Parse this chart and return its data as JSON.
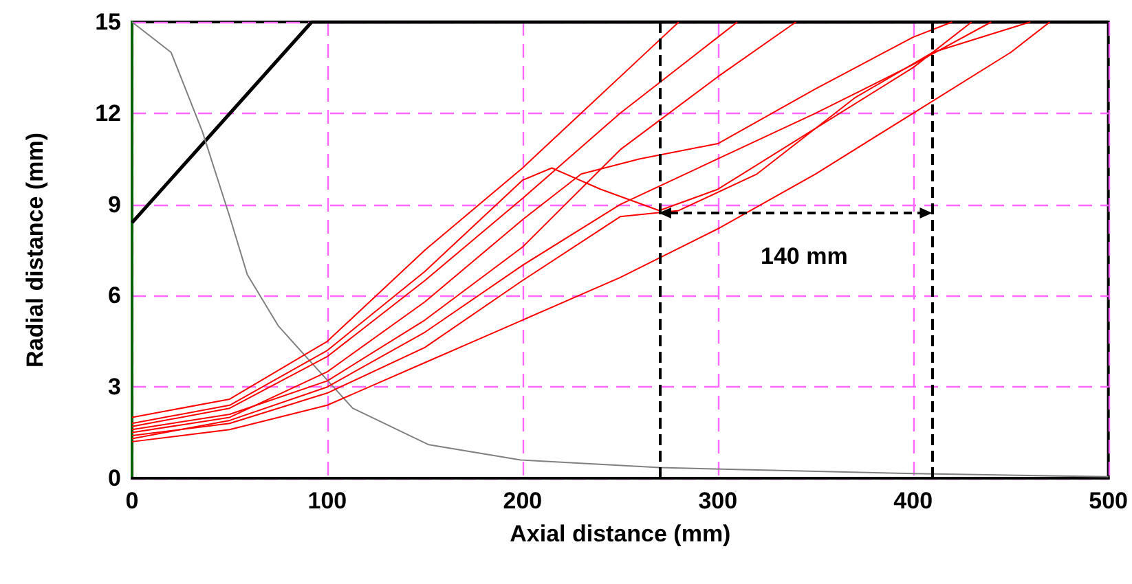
{
  "chart_data": {
    "type": "line",
    "xlabel": "Axial distance (mm)",
    "ylabel": "Radial distance (mm)",
    "xlim": [
      0,
      500
    ],
    "xticks": [
      0,
      100,
      200,
      300,
      400,
      500
    ],
    "ylim": [
      0,
      15
    ],
    "yticks": [
      0,
      3,
      6,
      9,
      12,
      15
    ],
    "grid": true,
    "marker": "none",
    "line_style": "solid",
    "series": [
      {
        "color": "#000000",
        "x": [
          0,
          92,
          500
        ],
        "values": [
          8.4,
          15,
          15
        ]
      },
      {
        "color": "#808080",
        "x": [
          0,
          20,
          36,
          50,
          59,
          75,
          89,
          113,
          152,
          199,
          270,
          400,
          500
        ],
        "values": [
          15,
          14,
          11.4,
          8.6,
          6.7,
          5,
          4.0,
          2.3,
          1.1,
          0.6,
          0.35,
          0.15,
          0.05
        ]
      },
      {
        "color": "#ff0000",
        "x": [
          0,
          50,
          100,
          150,
          200,
          250,
          300,
          350,
          400,
          450,
          470
        ],
        "values": [
          1.2,
          1.6,
          2.4,
          3.8,
          5.2,
          6.6,
          8.2,
          10,
          12,
          14,
          15
        ]
      },
      {
        "color": "#ff0000",
        "x": [
          0,
          50,
          100,
          150,
          200,
          250,
          300,
          350,
          400,
          440
        ],
        "values": [
          1.3,
          1.9,
          3,
          4.8,
          7,
          9,
          10.5,
          12,
          13.6,
          15
        ]
      },
      {
        "color": "#ff0000",
        "x": [
          0,
          50,
          100,
          150,
          200,
          230,
          260,
          300,
          350,
          400,
          420
        ],
        "values": [
          1.5,
          2,
          3.5,
          5.8,
          8.5,
          10,
          10.5,
          11,
          12.8,
          14.5,
          15
        ]
      },
      {
        "color": "#ff0000",
        "x": [
          0,
          50,
          100,
          150,
          200,
          215,
          240,
          270,
          300,
          350,
          400,
          430
        ],
        "values": [
          1.8,
          2.4,
          4.2,
          6.8,
          9.8,
          10.2,
          9.5,
          8.8,
          9.5,
          11.5,
          13.5,
          15
        ]
      },
      {
        "color": "#ff0000",
        "x": [
          0,
          50,
          100,
          150,
          200,
          230,
          260,
          280
        ],
        "values": [
          2,
          2.6,
          4.5,
          7.5,
          10.2,
          12,
          13.8,
          15
        ]
      },
      {
        "color": "#ff0000",
        "x": [
          0,
          50,
          100,
          150,
          200,
          250,
          300,
          310
        ],
        "values": [
          1.7,
          2.3,
          4,
          6.5,
          9.2,
          12,
          14.5,
          15
        ]
      },
      {
        "color": "#ff0000",
        "x": [
          0,
          50,
          100,
          150,
          200,
          250,
          280,
          320,
          370,
          410,
          460
        ],
        "values": [
          1.4,
          1.8,
          2.8,
          4.3,
          6.5,
          8.6,
          8.8,
          10,
          12.5,
          14,
          15
        ]
      },
      {
        "color": "#ff0000",
        "x": [
          0,
          50,
          100,
          150,
          200,
          250,
          300,
          340
        ],
        "values": [
          1.6,
          2.1,
          3.2,
          5.2,
          7.6,
          10.8,
          13.2,
          15
        ]
      }
    ],
    "ref_lines": [
      {
        "axis": "x",
        "value": 270,
        "color": "#000000",
        "line_style": "dashed"
      },
      {
        "axis": "x",
        "value": 410,
        "color": "#000000",
        "line_style": "dashed"
      }
    ],
    "annotations": [
      "140 mm"
    ]
  }
}
